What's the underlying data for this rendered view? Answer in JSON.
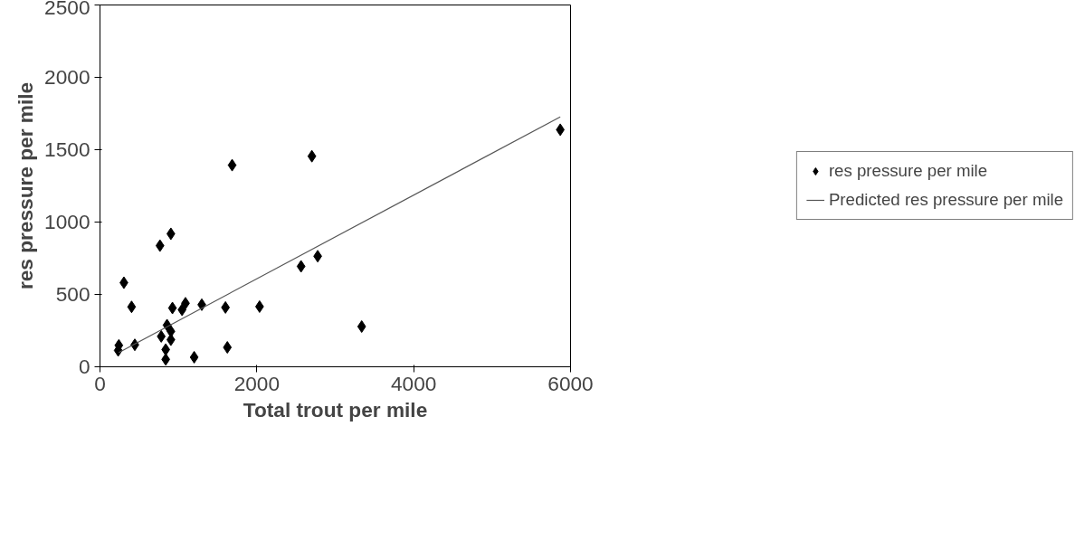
{
  "chart_data": {
    "type": "scatter",
    "xlabel": "Total trout per mile",
    "ylabel": "res pressure per mile",
    "xlim": [
      0,
      6000
    ],
    "ylim": [
      0,
      2500
    ],
    "xticks": [
      0,
      2000,
      4000,
      6000
    ],
    "yticks": [
      0,
      500,
      1000,
      1500,
      2000,
      2500
    ],
    "grid": false,
    "legend": "right",
    "series": [
      {
        "name": "res pressure per mile",
        "color": "#000000",
        "marker": "diamond",
        "x": [
          5869,
          2702,
          1685,
          904,
          765,
          2776,
          2564,
          305,
          403,
          924,
          1046,
          1090,
          1298,
          1600,
          2035,
          3337,
          855,
          904,
          781,
          904,
          240,
          444,
          232,
          838,
          1624,
          838,
          1201
        ],
        "values": [
          1638,
          1455,
          1393,
          919,
          837,
          764,
          694,
          581,
          414,
          406,
          394,
          439,
          429,
          410,
          416,
          278,
          288,
          245,
          210,
          187,
          148,
          152,
          113,
          119,
          134,
          51,
          66
        ]
      },
      {
        "name": "Predicted res pressure per mile",
        "type": "line",
        "color": "#555555",
        "line_style": "solid",
        "x": [
          240,
          5869
        ],
        "values": [
          99,
          1727
        ]
      }
    ]
  }
}
